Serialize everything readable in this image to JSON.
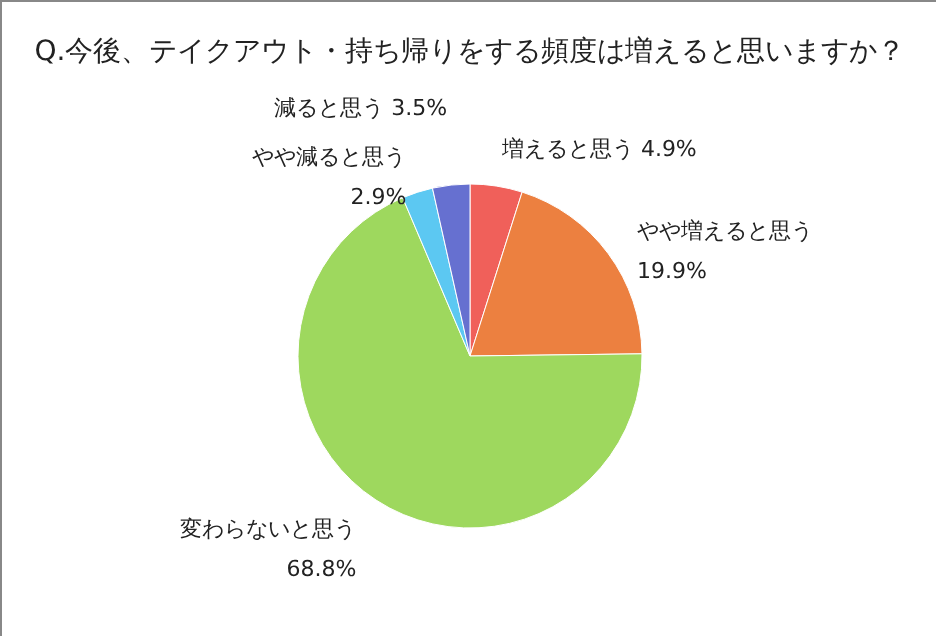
{
  "chart_data": {
    "type": "pie",
    "title": "Q.今後、テイクアウト・持ち帰りをする頻度は増えると思いますか？",
    "categories": [
      "増えると思う",
      "やや増えると思う",
      "変わらないと思う",
      "やや減ると思う",
      "減ると思う"
    ],
    "values": [
      4.9,
      19.9,
      68.8,
      2.9,
      3.5
    ],
    "value_labels": [
      "4.9%",
      "19.9%",
      "68.8%",
      "2.9%",
      "3.5%"
    ],
    "colors": [
      "#f0605a",
      "#ec8040",
      "#9ed85e",
      "#5cc8f2",
      "#6670d0"
    ],
    "legend": false
  }
}
